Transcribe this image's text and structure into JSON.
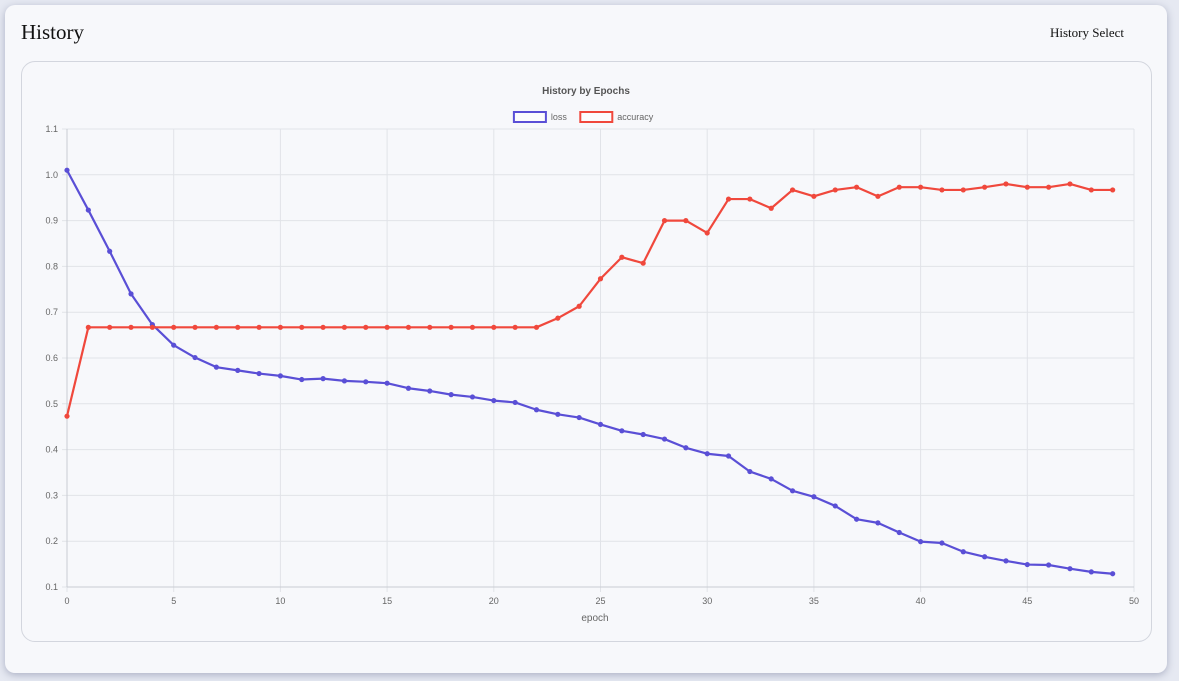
{
  "header": {
    "title": "History",
    "select_label": "History Select"
  },
  "chart_data": {
    "type": "line",
    "title": "History by Epochs",
    "xlabel": "epoch",
    "ylabel": "",
    "xlim": [
      0,
      50
    ],
    "ylim": [
      0.1,
      1.1
    ],
    "x_ticks": [
      0,
      5,
      10,
      15,
      20,
      25,
      30,
      35,
      40,
      45,
      50
    ],
    "y_ticks": [
      0.1,
      0.2,
      0.3,
      0.4,
      0.5,
      0.6,
      0.7,
      0.8,
      0.9,
      1.0,
      1.1
    ],
    "grid": true,
    "legend_position": "top-center",
    "x": [
      0,
      1,
      2,
      3,
      4,
      5,
      6,
      7,
      8,
      9,
      10,
      11,
      12,
      13,
      14,
      15,
      16,
      17,
      18,
      19,
      20,
      21,
      22,
      23,
      24,
      25,
      26,
      27,
      28,
      29,
      30,
      31,
      32,
      33,
      34,
      35,
      36,
      37,
      38,
      39,
      40,
      41,
      42,
      43,
      44,
      45,
      46,
      47,
      48,
      49
    ],
    "series": [
      {
        "name": "loss",
        "color": "#5a4fd6",
        "values": [
          1.01,
          0.923,
          0.833,
          0.74,
          0.673,
          0.628,
          0.601,
          0.58,
          0.573,
          0.566,
          0.561,
          0.553,
          0.555,
          0.55,
          0.548,
          0.545,
          0.534,
          0.528,
          0.52,
          0.515,
          0.507,
          0.503,
          0.487,
          0.477,
          0.47,
          0.455,
          0.441,
          0.433,
          0.423,
          0.404,
          0.391,
          0.386,
          0.352,
          0.336,
          0.31,
          0.297,
          0.277,
          0.248,
          0.24,
          0.219,
          0.199,
          0.196,
          0.177,
          0.166,
          0.157,
          0.149,
          0.148,
          0.14,
          0.133,
          0.129
        ]
      },
      {
        "name": "accuracy",
        "color": "#f0483c",
        "values": [
          0.473,
          0.667,
          0.667,
          0.667,
          0.667,
          0.667,
          0.667,
          0.667,
          0.667,
          0.667,
          0.667,
          0.667,
          0.667,
          0.667,
          0.667,
          0.667,
          0.667,
          0.667,
          0.667,
          0.667,
          0.667,
          0.667,
          0.667,
          0.687,
          0.713,
          0.773,
          0.82,
          0.807,
          0.9,
          0.9,
          0.873,
          0.947,
          0.947,
          0.927,
          0.967,
          0.953,
          0.967,
          0.973,
          0.953,
          0.973,
          0.973,
          0.967,
          0.967,
          0.973,
          0.98,
          0.973,
          0.973,
          0.98,
          0.967,
          0.967
        ]
      }
    ]
  }
}
